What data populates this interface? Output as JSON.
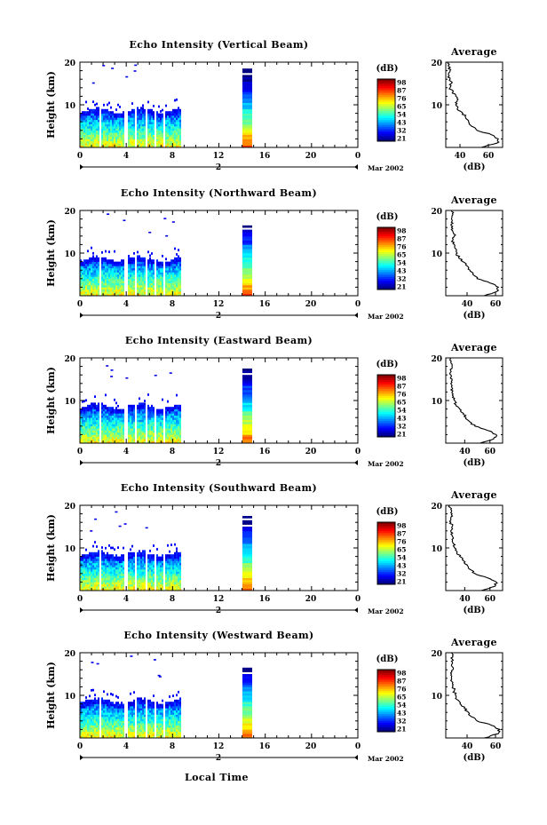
{
  "chart_data": {
    "type": "heatmap",
    "x_label": "Local Time",
    "x_ticks": [
      "0",
      "4",
      "8",
      "12",
      "16",
      "20",
      "0"
    ],
    "date_mark": "2",
    "date_caption": "Mar 2002",
    "y_label": "Height (km)",
    "y_ticks": [
      "20",
      "10"
    ],
    "colorbar_unit": "(dB)",
    "colorbar_labels": [
      "98",
      "87",
      "76",
      "65",
      "54",
      "43",
      "32",
      "21"
    ],
    "avg_title": "Average",
    "avg_xlabel": "(dB)",
    "panels": [
      {
        "title": "Echo Intensity (Vertical Beam)",
        "avg_x_ticks": [
          "40",
          "60"
        ],
        "avg_range": [
          30,
          70
        ],
        "profile_height_km": [
          0,
          1,
          2,
          3,
          4,
          5,
          6,
          7,
          8,
          9,
          10,
          11,
          12,
          13,
          14,
          15,
          16,
          17,
          18,
          19,
          20
        ],
        "profile_db": [
          55,
          66,
          67,
          62,
          52,
          48,
          46,
          44,
          42,
          38,
          37,
          38,
          37,
          35,
          33,
          34,
          33,
          32,
          33,
          32,
          31
        ]
      },
      {
        "title": "Echo Intensity (Northward Beam)",
        "avg_x_ticks": [
          "40",
          "60"
        ],
        "avg_range": [
          25,
          65
        ],
        "profile_height_km": [
          0,
          1,
          2,
          3,
          4,
          5,
          6,
          7,
          8,
          9,
          10,
          11,
          12,
          13,
          14,
          15,
          16,
          17,
          18,
          19,
          20
        ],
        "profile_db": [
          52,
          61,
          62,
          56,
          47,
          44,
          42,
          40,
          37,
          34,
          33,
          32,
          31,
          30,
          31,
          30,
          29,
          30,
          29,
          30,
          29
        ]
      },
      {
        "title": "Echo Intensity (Eastward Beam)",
        "avg_x_ticks": [
          "40",
          "60"
        ],
        "avg_range": [
          25,
          70
        ],
        "profile_height_km": [
          0,
          1,
          2,
          3,
          4,
          5,
          6,
          7,
          8,
          9,
          10,
          11,
          12,
          13,
          14,
          15,
          16,
          17,
          18,
          19,
          20
        ],
        "profile_db": [
          52,
          63,
          65,
          58,
          48,
          44,
          41,
          39,
          36,
          33,
          32,
          31,
          30,
          30,
          29,
          30,
          29,
          29,
          30,
          29,
          29
        ]
      },
      {
        "title": "Echo Intensity (Southward Beam)",
        "avg_x_ticks": [
          "40",
          "60"
        ],
        "avg_range": [
          25,
          70
        ],
        "profile_height_km": [
          0,
          1,
          2,
          3,
          4,
          5,
          6,
          7,
          8,
          9,
          10,
          11,
          12,
          13,
          14,
          15,
          16,
          17,
          18,
          19,
          20
        ],
        "profile_db": [
          53,
          64,
          65,
          58,
          48,
          44,
          42,
          39,
          36,
          34,
          32,
          31,
          30,
          30,
          29,
          30,
          29,
          29,
          30,
          29,
          28
        ]
      },
      {
        "title": "Echo Intensity (Westward Beam)",
        "avg_x_ticks": [
          "40",
          "60"
        ],
        "avg_range": [
          25,
          65
        ],
        "profile_height_km": [
          0,
          1,
          2,
          3,
          4,
          5,
          6,
          7,
          8,
          9,
          10,
          11,
          12,
          13,
          14,
          15,
          16,
          17,
          18,
          19,
          20
        ],
        "profile_db": [
          52,
          62,
          63,
          57,
          47,
          43,
          41,
          38,
          35,
          33,
          32,
          31,
          30,
          30,
          29,
          29,
          30,
          29,
          29,
          30,
          29
        ]
      }
    ]
  }
}
